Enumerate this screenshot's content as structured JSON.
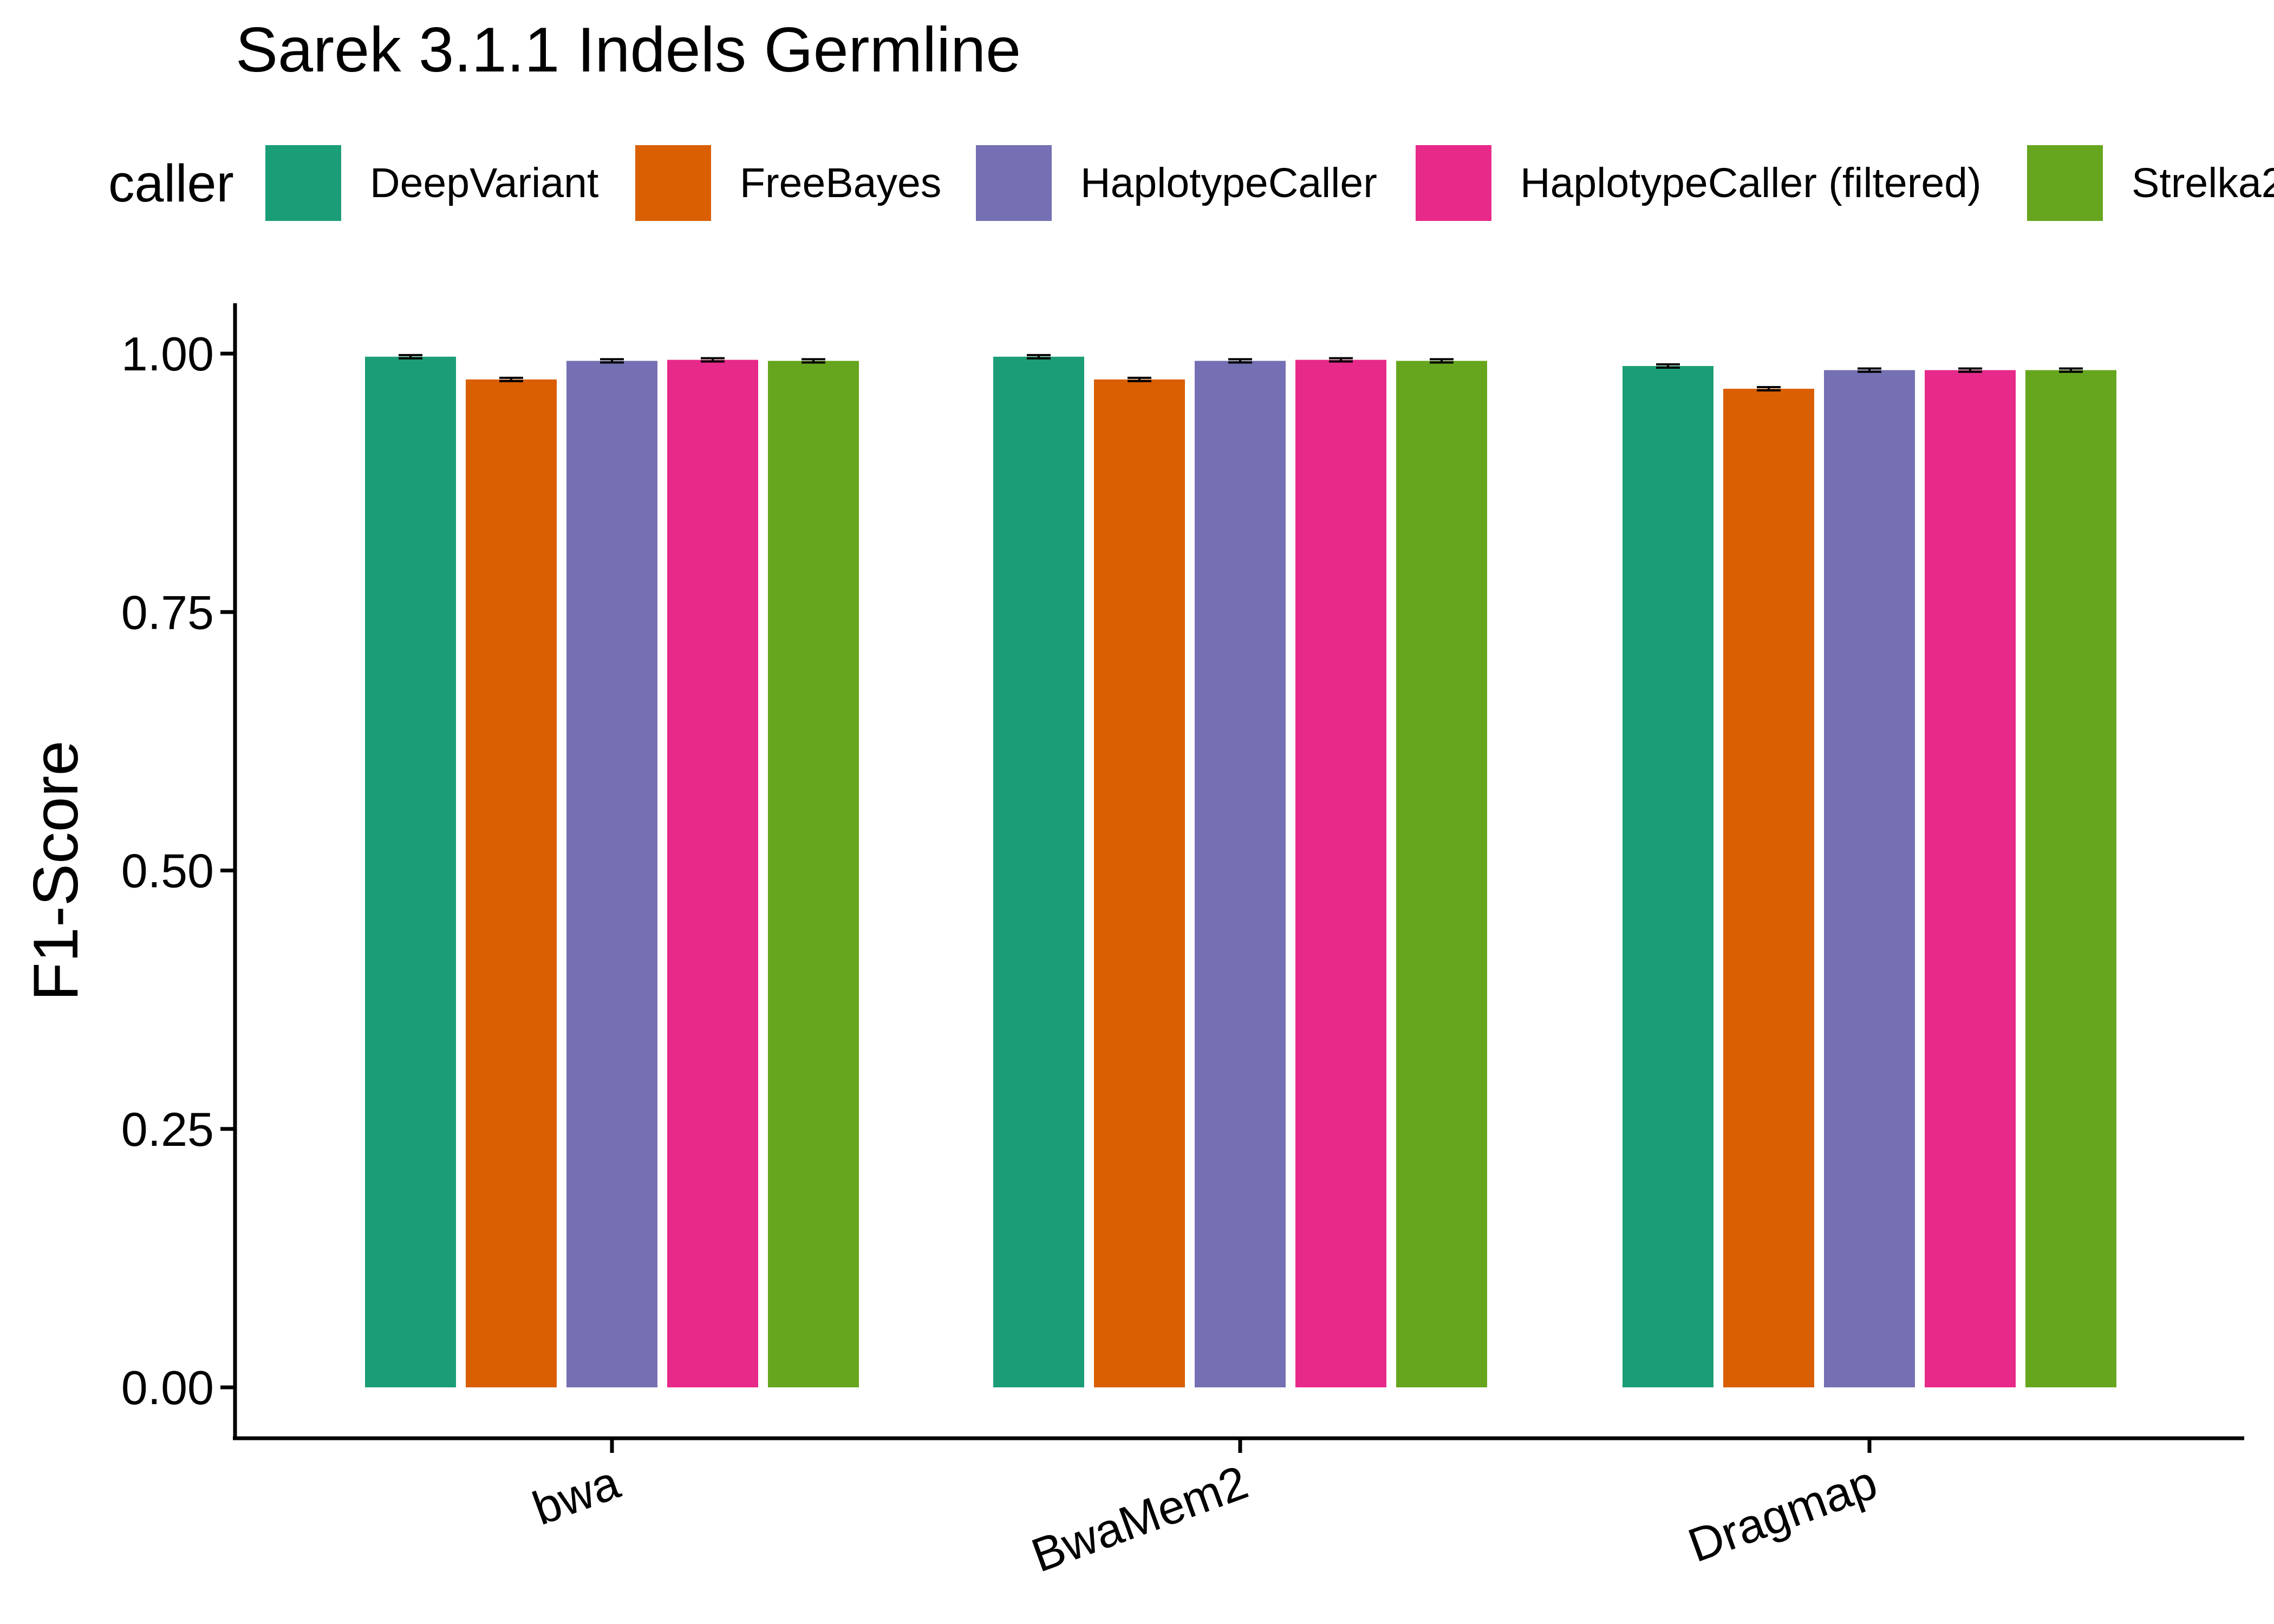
{
  "chart_data": {
    "type": "bar",
    "title": "Sarek 3.1.1 Indels Germline",
    "xlabel": "",
    "ylabel": "F1-Score",
    "ylim": [
      0,
      1.05
    ],
    "yticks": [
      "0.00",
      "0.25",
      "0.50",
      "0.75",
      "1.00"
    ],
    "grid": false,
    "legend": {
      "title": "caller",
      "placement": "top"
    },
    "categories": [
      "bwa",
      "BwaMem2",
      "Dragmap"
    ],
    "series": [
      {
        "name": "DeepVariant",
        "color": "#1B9E77",
        "values": [
          0.997,
          0.997,
          0.988
        ]
      },
      {
        "name": "FreeBayes",
        "color": "#D95F02",
        "values": [
          0.975,
          0.975,
          0.966
        ]
      },
      {
        "name": "HaplotypeCaller",
        "color": "#7570B3",
        "values": [
          0.993,
          0.993,
          0.984
        ]
      },
      {
        "name": "HaplotypeCaller (filtered)",
        "color": "#E7298A",
        "values": [
          0.994,
          0.994,
          0.984
        ]
      },
      {
        "name": "Strelka2",
        "color": "#66A61E",
        "values": [
          0.993,
          0.993,
          0.984
        ]
      }
    ]
  }
}
